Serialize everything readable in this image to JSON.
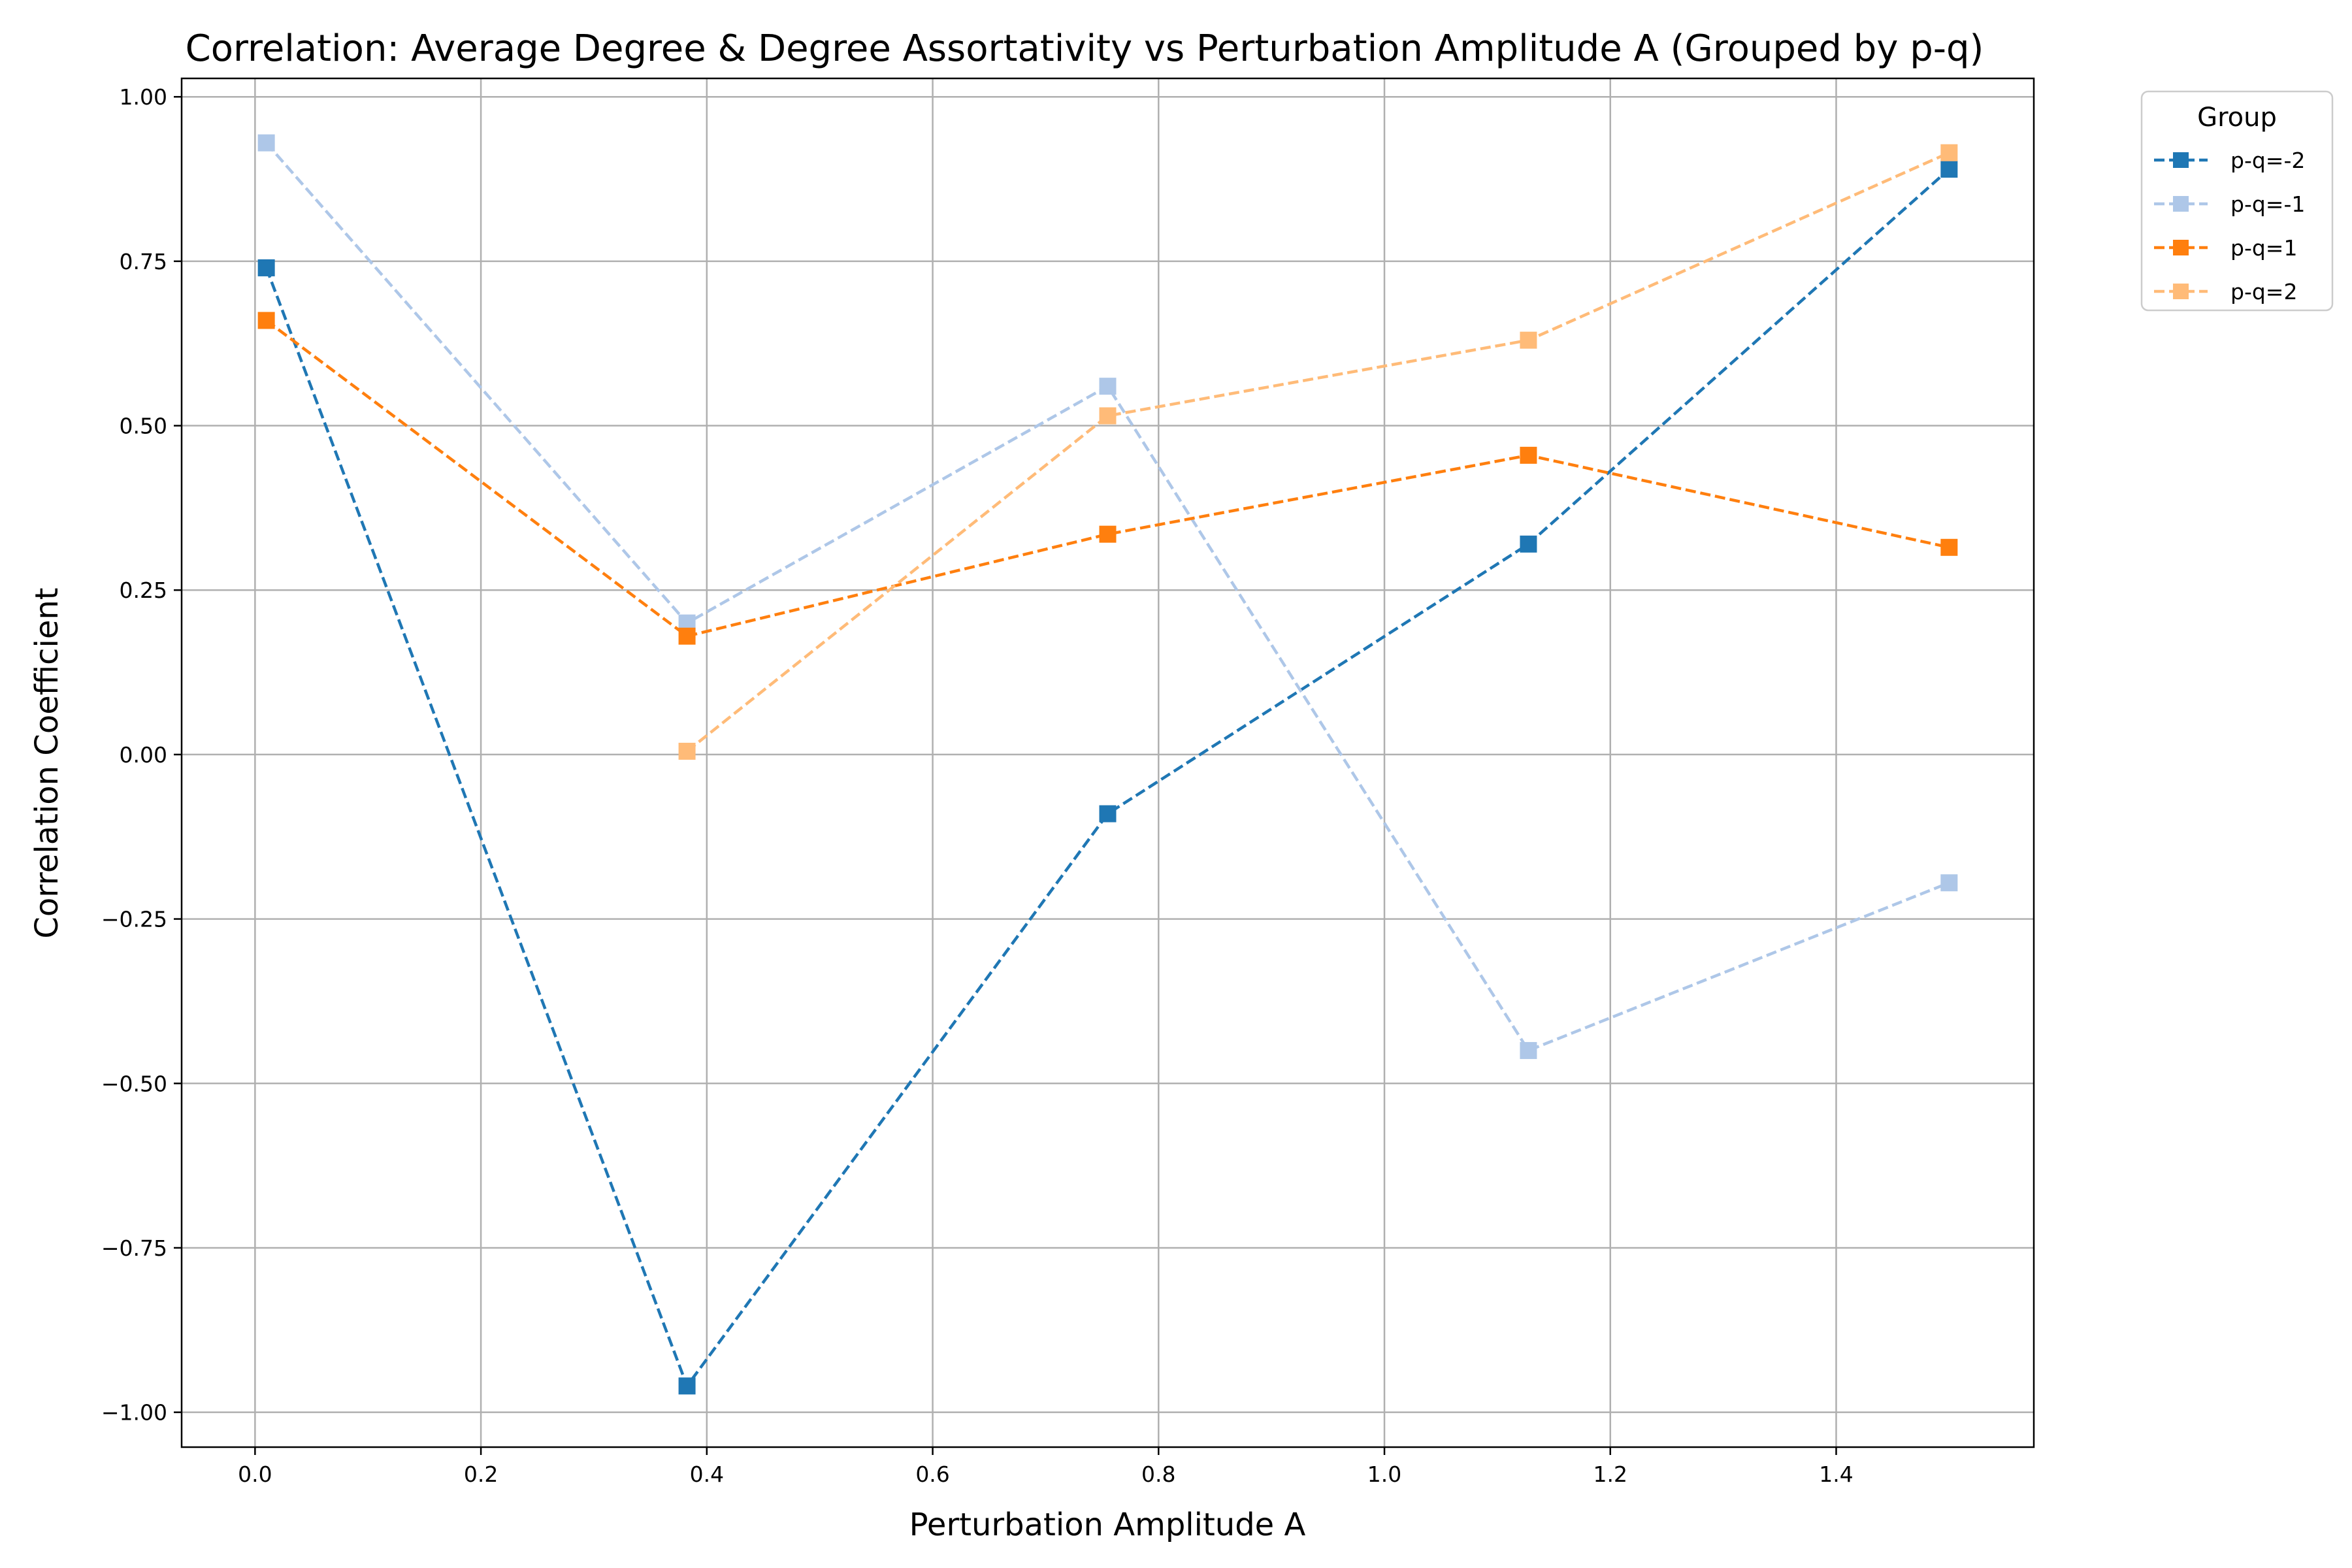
{
  "chart_data": {
    "type": "line",
    "title": "Correlation: Average Degree & Degree Assortativity vs Perturbation Amplitude A (Grouped by p-q)",
    "xlabel": "Perturbation Amplitude A",
    "ylabel": "Correlation Coefficient",
    "xlim": [
      -0.065,
      1.575
    ],
    "ylim": [
      -1.053,
      1.028
    ],
    "x_ticks": [
      {
        "value": 0.0,
        "label": "0.0"
      },
      {
        "value": 0.2,
        "label": "0.2"
      },
      {
        "value": 0.4,
        "label": "0.4"
      },
      {
        "value": 0.6,
        "label": "0.6"
      },
      {
        "value": 0.8,
        "label": "0.8"
      },
      {
        "value": 1.0,
        "label": "1.0"
      },
      {
        "value": 1.2,
        "label": "1.2"
      },
      {
        "value": 1.4,
        "label": "1.4"
      }
    ],
    "y_ticks": [
      {
        "value": -1.0,
        "label": "−1.00"
      },
      {
        "value": -0.75,
        "label": "−0.75"
      },
      {
        "value": -0.5,
        "label": "−0.50"
      },
      {
        "value": -0.25,
        "label": "−0.25"
      },
      {
        "value": 0.0,
        "label": "0.00"
      },
      {
        "value": 0.25,
        "label": "0.25"
      },
      {
        "value": 0.5,
        "label": "0.50"
      },
      {
        "value": 0.75,
        "label": "0.75"
      },
      {
        "value": 1.0,
        "label": "1.00"
      }
    ],
    "grid": true,
    "legend": {
      "title": "Group",
      "placement": "outside-top-right"
    },
    "series": [
      {
        "name": "p-q=-2",
        "color": "#1f77b4",
        "x": [
          0.01,
          0.3825,
          0.755,
          1.1275,
          1.5
        ],
        "y": [
          0.74,
          -0.96,
          -0.09,
          0.32,
          0.89
        ]
      },
      {
        "name": "p-q=-1",
        "color": "#aec7e8",
        "x": [
          0.01,
          0.3825,
          0.755,
          1.1275,
          1.5
        ],
        "y": [
          0.93,
          0.2,
          0.56,
          -0.45,
          -0.195
        ]
      },
      {
        "name": "p-q=1",
        "color": "#ff7f0e",
        "x": [
          0.01,
          0.3825,
          0.755,
          1.1275,
          1.5
        ],
        "y": [
          0.66,
          0.18,
          0.335,
          0.455,
          0.315
        ]
      },
      {
        "name": "p-q=2",
        "color": "#ffbb78",
        "x": [
          0.3825,
          0.755,
          1.1275,
          1.5
        ],
        "y": [
          0.005,
          0.515,
          0.63,
          0.915
        ]
      }
    ]
  }
}
